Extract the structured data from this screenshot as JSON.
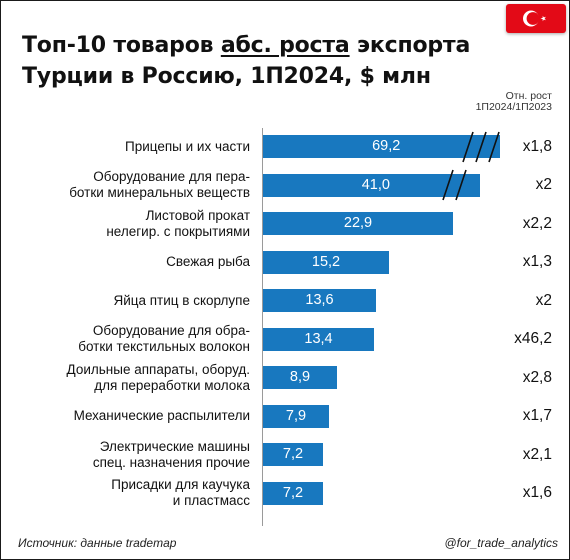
{
  "title": {
    "line1_start": "Топ-10 товаров ",
    "line1_underlined": "абс. роста",
    "line1_end": " экспорта",
    "line2": "Турции в Россию, 1П2024, $ млн"
  },
  "growth_header": {
    "line1": "Отн. рост",
    "line2": "1П2024/1П2023"
  },
  "flag": {
    "country": "Turkey",
    "icon": "turkish-flag-icon",
    "color": "#e30a17"
  },
  "source": "Источник: данные trademap",
  "handle": "@for_trade_analytics",
  "colors": {
    "bar": "#1878bf",
    "value_text": "#ffffff"
  },
  "chart_data": {
    "type": "bar",
    "orientation": "horizontal",
    "title": "Топ-10 товаров абс. роста экспорта Турции в Россию, 1П2024, $ млн",
    "broken_bars": [
      0,
      1
    ],
    "categories": [
      "Прицепы и их части",
      "Оборудование для переработки минеральных веществ",
      "Листовой прокат нелегир. с покрытиями",
      "Свежая рыба",
      "Яйца птиц в скорлупе",
      "Оборудование для обработки текстильных волокон",
      "Доильные аппараты, оборуд. для переработки молока",
      "Механические распылители",
      "Электрические машины спец. назначения прочие",
      "Присадки для каучука и пластмасс"
    ],
    "series": [
      {
        "values": [
          69.2,
          41.0,
          22.9,
          15.2,
          13.6,
          13.4,
          8.9,
          7.9,
          7.2,
          7.2
        ]
      }
    ],
    "rows": [
      {
        "label_lines": [
          "Прицепы и их части"
        ],
        "value": 69.2,
        "value_label": "69,2",
        "growth": "x1,8"
      },
      {
        "label_lines": [
          "Оборудование для пера-",
          "ботки минеральных веществ"
        ],
        "value": 41.0,
        "value_label": "41,0",
        "growth": "x2"
      },
      {
        "label_lines": [
          "Листовой прокат",
          "нелегир. с покрытиями"
        ],
        "value": 22.9,
        "value_label": "22,9",
        "growth": "x2,2"
      },
      {
        "label_lines": [
          "Свежая рыба"
        ],
        "value": 15.2,
        "value_label": "15,2",
        "growth": "x1,3"
      },
      {
        "label_lines": [
          "Яйца птиц в скорлупе"
        ],
        "value": 13.6,
        "value_label": "13,6",
        "growth": "x2"
      },
      {
        "label_lines": [
          "Оборудование для обра-",
          "ботки текстильных волокон"
        ],
        "value": 13.4,
        "value_label": "13,4",
        "growth": "x46,2"
      },
      {
        "label_lines": [
          "Доильные аппараты, оборуд.",
          "для переработки молока"
        ],
        "value": 8.9,
        "value_label": "8,9",
        "growth": "x2,8"
      },
      {
        "label_lines": [
          "Механические распылители"
        ],
        "value": 7.9,
        "value_label": "7,9",
        "growth": "x1,7"
      },
      {
        "label_lines": [
          "Электрические машины",
          "спец. назначения прочие"
        ],
        "value": 7.2,
        "value_label": "7,2",
        "growth": "x2,1"
      },
      {
        "label_lines": [
          "Присадки для каучука",
          "и пластмасс"
        ],
        "value": 7.2,
        "value_label": "7,2",
        "growth": "x1,6"
      }
    ]
  }
}
